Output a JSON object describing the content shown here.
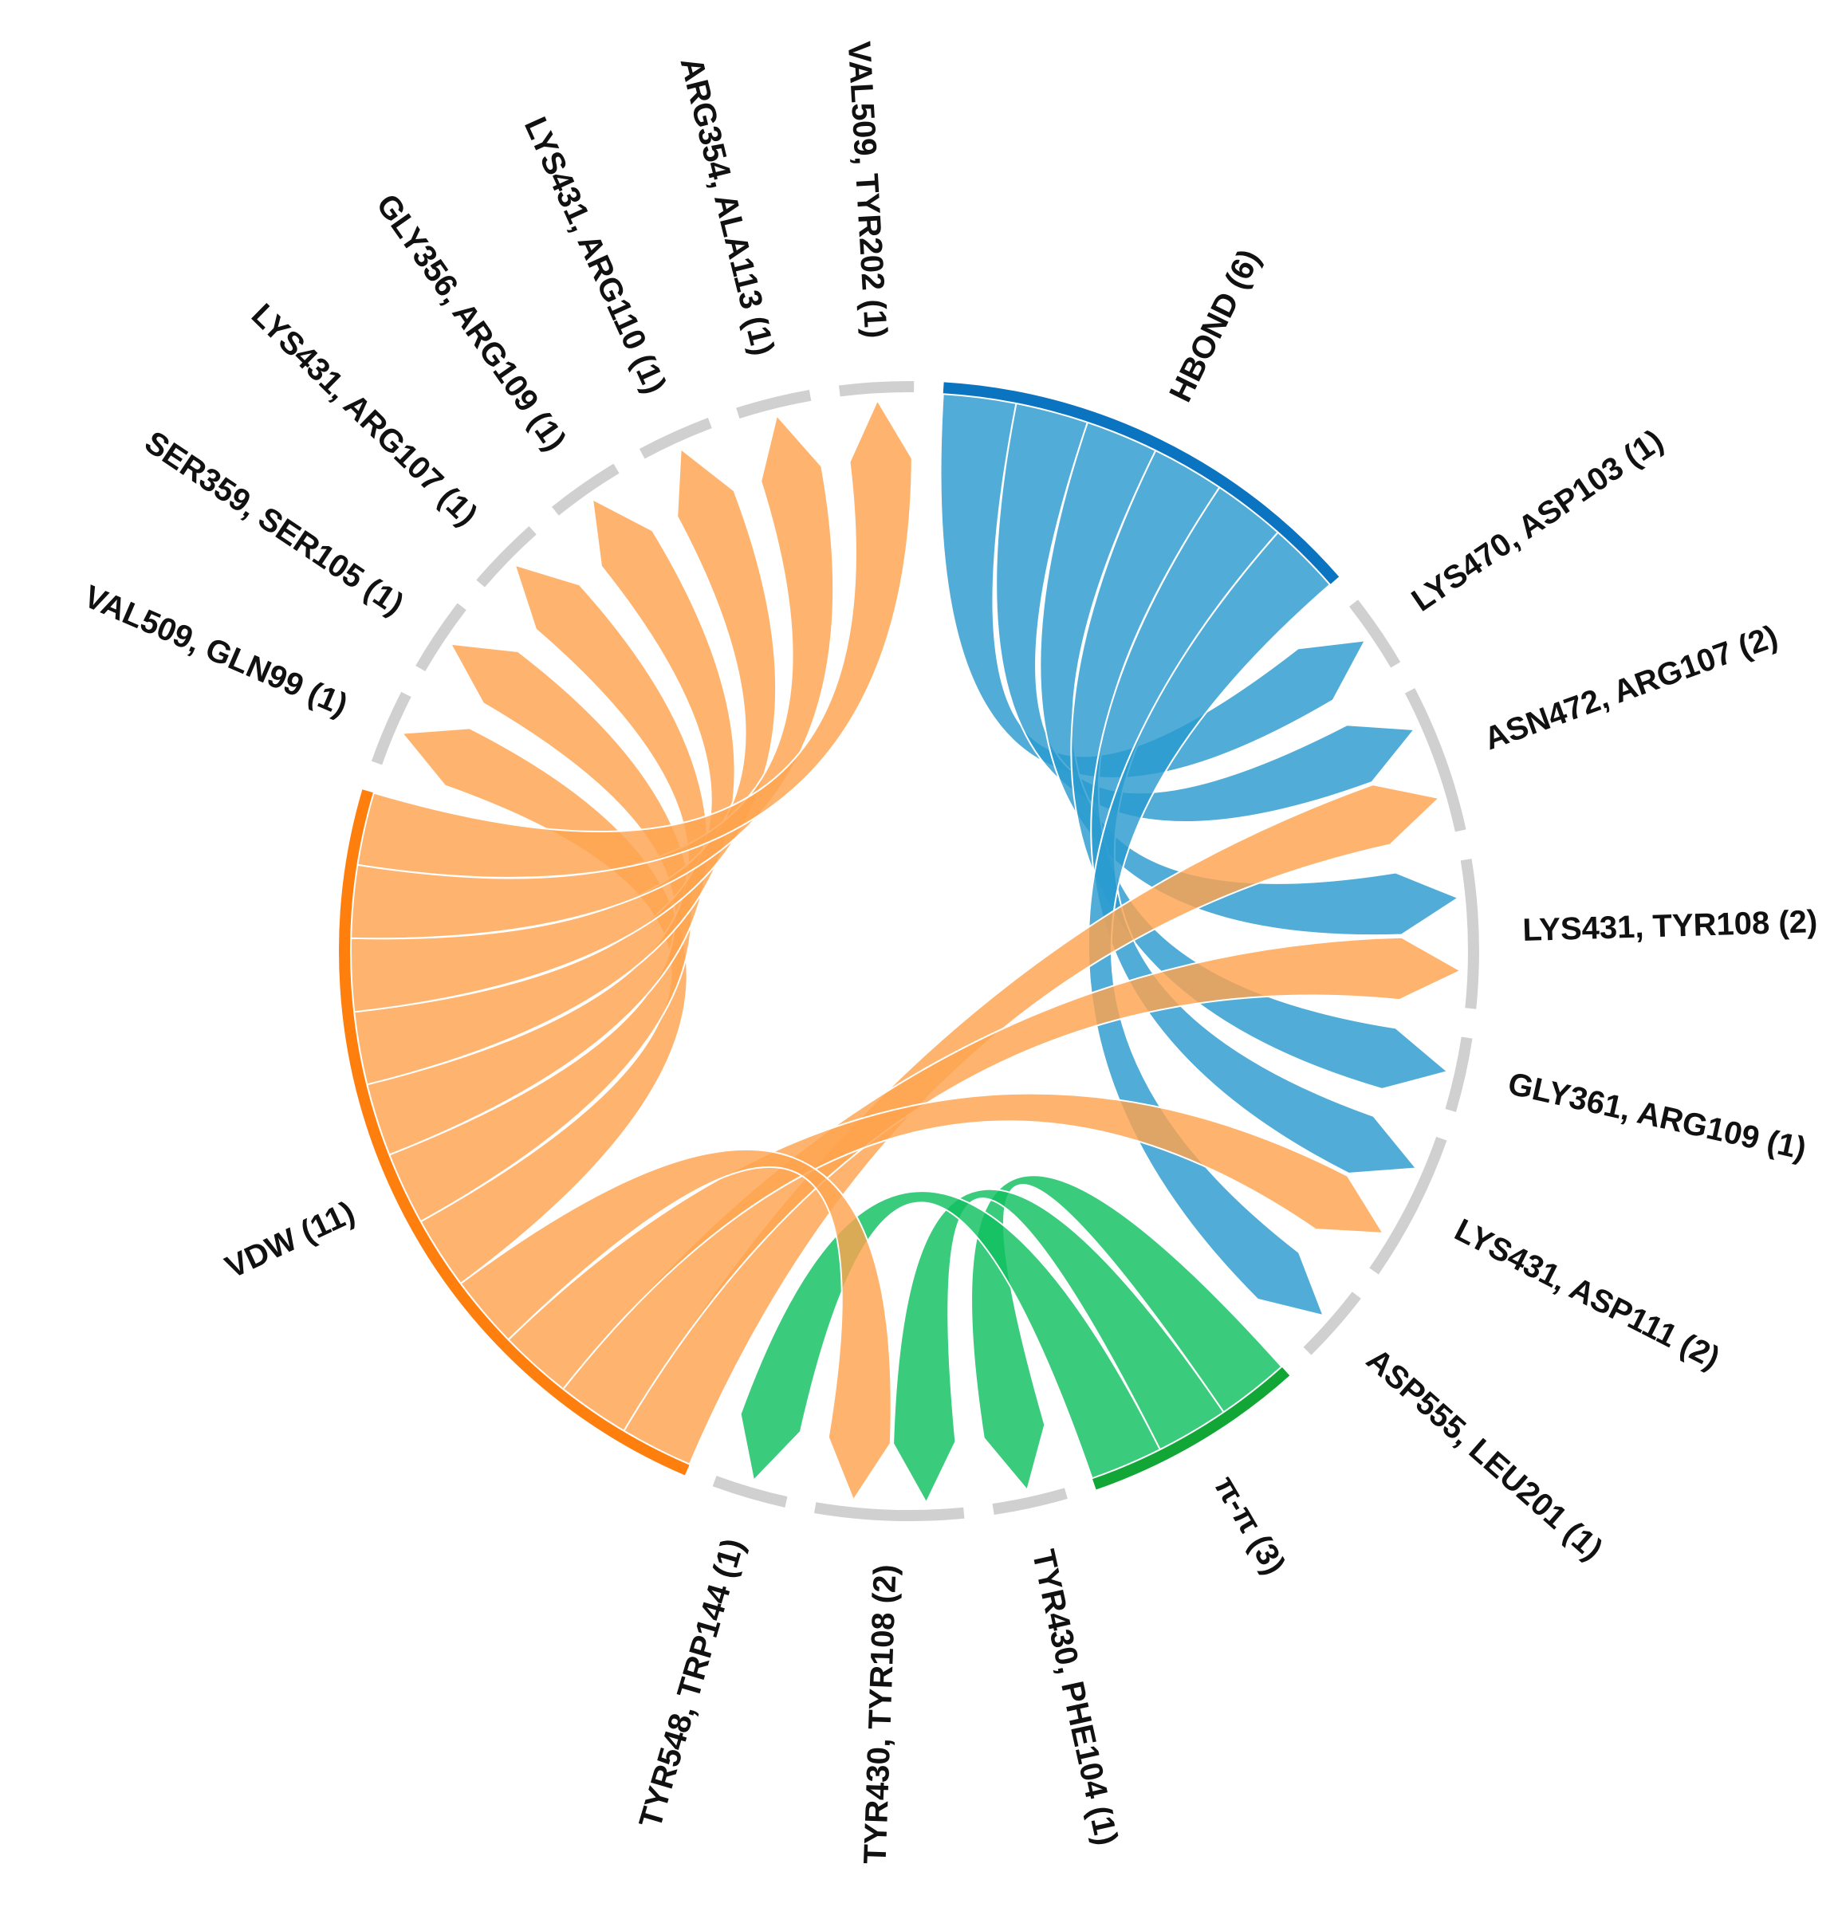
{
  "chart_data": {
    "type": "chord",
    "groups": [
      {
        "id": "hbond",
        "label": "HBOND (6)",
        "count": 6,
        "color": "#0a74c0",
        "ribbon_color": "#2b9bd0"
      },
      {
        "id": "pipi",
        "label": "π-π (3)",
        "count": 3,
        "color": "#12a637",
        "ribbon_color": "#0fbf5f"
      },
      {
        "id": "vdw",
        "label": "VDW (11)",
        "count": 11,
        "color": "#ff7f0e",
        "ribbon_color": "#fea44e"
      }
    ],
    "residues": [
      {
        "label": "LYS470, ASP103 (1)",
        "count": 1,
        "hbond": 1,
        "pipi": 0,
        "vdw": 0
      },
      {
        "label": "ASN472, ARG107 (2)",
        "count": 2,
        "hbond": 1,
        "pipi": 0,
        "vdw": 1
      },
      {
        "label": "LYS431, TYR108 (2)",
        "count": 2,
        "hbond": 1,
        "pipi": 0,
        "vdw": 1
      },
      {
        "label": "GLY361, ARG109 (1)",
        "count": 1,
        "hbond": 1,
        "pipi": 0,
        "vdw": 0
      },
      {
        "label": "LYS431, ASP111 (2)",
        "count": 2,
        "hbond": 1,
        "pipi": 0,
        "vdw": 1
      },
      {
        "label": "ASP555, LEU201 (1)",
        "count": 1,
        "hbond": 1,
        "pipi": 0,
        "vdw": 0
      },
      {
        "label": "TYR430, PHE104 (1)",
        "count": 1,
        "hbond": 0,
        "pipi": 1,
        "vdw": 0
      },
      {
        "label": "TYR430, TYR108 (2)",
        "count": 2,
        "hbond": 0,
        "pipi": 1,
        "vdw": 1
      },
      {
        "label": "TYR548, TRP144 (1)",
        "count": 1,
        "hbond": 0,
        "pipi": 1,
        "vdw": 0
      },
      {
        "label": "VAL509, GLN99 (1)",
        "count": 1,
        "hbond": 0,
        "pipi": 0,
        "vdw": 1
      },
      {
        "label": "SER359, SER105 (1)",
        "count": 1,
        "hbond": 0,
        "pipi": 0,
        "vdw": 1
      },
      {
        "label": "LYS431, ARG107 (1)",
        "count": 1,
        "hbond": 0,
        "pipi": 0,
        "vdw": 1
      },
      {
        "label": "GLY356, ARG109 (1)",
        "count": 1,
        "hbond": 0,
        "pipi": 0,
        "vdw": 1
      },
      {
        "label": "LYS431, ARG110 (1)",
        "count": 1,
        "hbond": 0,
        "pipi": 0,
        "vdw": 1
      },
      {
        "label": "ARG354, ALA113 (1)",
        "count": 1,
        "hbond": 0,
        "pipi": 0,
        "vdw": 1
      },
      {
        "label": "VAL509, TYR202 (1)",
        "count": 1,
        "hbond": 0,
        "pipi": 0,
        "vdw": 1
      }
    ]
  }
}
